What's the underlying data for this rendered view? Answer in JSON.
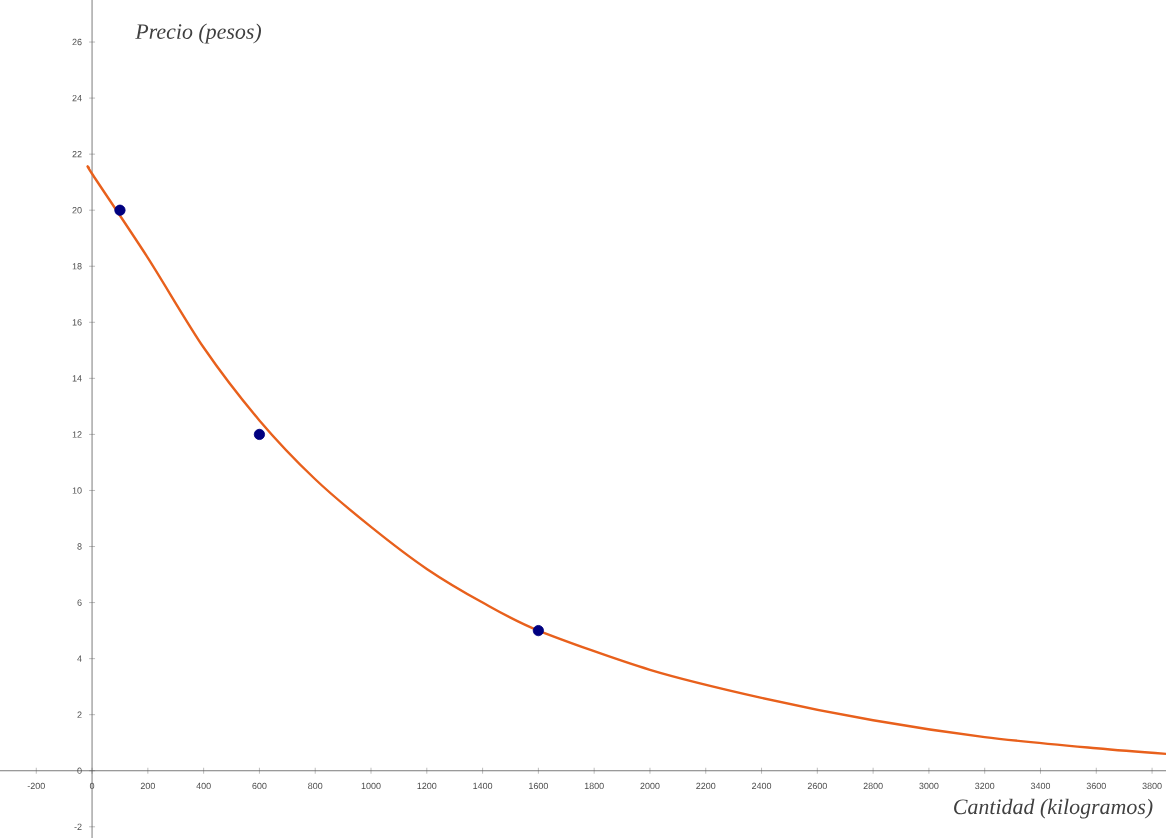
{
  "chart_data": {
    "type": "line",
    "xlabel": "*Cantidad (kilogramos)*",
    "ylabel": "*Precio (pesos)*",
    "xlim": [
      -330,
      3850
    ],
    "ylim": [
      -2.4,
      27.5
    ],
    "xticks": [
      -200,
      0,
      200,
      400,
      600,
      800,
      1000,
      1200,
      1400,
      1600,
      1800,
      2000,
      2200,
      2400,
      2600,
      2800,
      3000,
      3200,
      3400,
      3600,
      3800
    ],
    "yticks": [
      -2,
      0,
      2,
      4,
      6,
      8,
      10,
      12,
      14,
      16,
      18,
      20,
      22,
      24,
      26
    ],
    "grid": false,
    "series": [
      {
        "color": "#e8601c",
        "marker": "none",
        "x": [
          -10,
          0,
          200,
          400,
          600,
          800,
          1000,
          1200,
          1400,
          1600,
          2000,
          2400,
          2800,
          3200,
          3600,
          3850
        ],
        "values": [
          21.5,
          21.3,
          18.3,
          15.1,
          12.5,
          10.4,
          8.7,
          7.2,
          6,
          5,
          3.6,
          2.6,
          1.8,
          1.2,
          0.8,
          0.6
        ]
      },
      {
        "type": "scatter",
        "color": "#000080",
        "marker": "circle",
        "x": [
          100,
          600,
          1600
        ],
        "values": [
          20,
          12,
          5
        ]
      }
    ]
  }
}
